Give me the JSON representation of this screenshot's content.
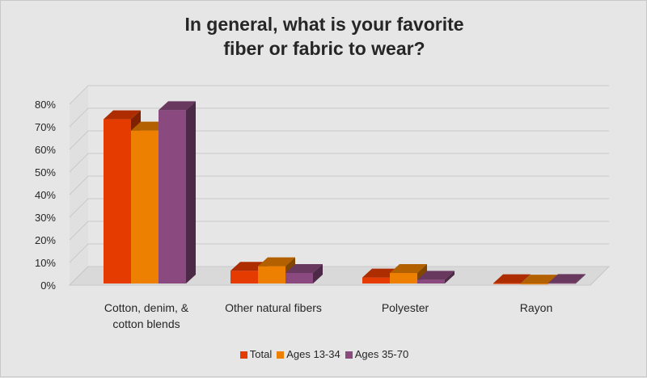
{
  "chart_data": {
    "type": "bar",
    "title_lines": [
      "In general, what is your favorite",
      "fiber or fabric to wear?"
    ],
    "categories": [
      [
        "Cotton, denim, &",
        "cotton blends"
      ],
      [
        "Other natural fibers"
      ],
      [
        "Polyester"
      ],
      [
        "Rayon"
      ]
    ],
    "series": [
      {
        "name": "Total",
        "values": [
          73,
          6,
          3,
          0.5
        ],
        "color": "#e63b00"
      },
      {
        "name": "Ages 13-34",
        "values": [
          68,
          8,
          5,
          0.3
        ],
        "color": "#ed8000"
      },
      {
        "name": "Ages 35-70",
        "values": [
          77,
          5,
          2,
          0.6
        ],
        "color": "#8b4a7f"
      }
    ],
    "ylim": [
      0,
      80
    ],
    "yticks": [
      "0%",
      "10%",
      "20%",
      "30%",
      "40%",
      "50%",
      "60%",
      "70%",
      "80%"
    ],
    "grid": true,
    "legend_position": "bottom",
    "style": "3d-clustered-column"
  }
}
